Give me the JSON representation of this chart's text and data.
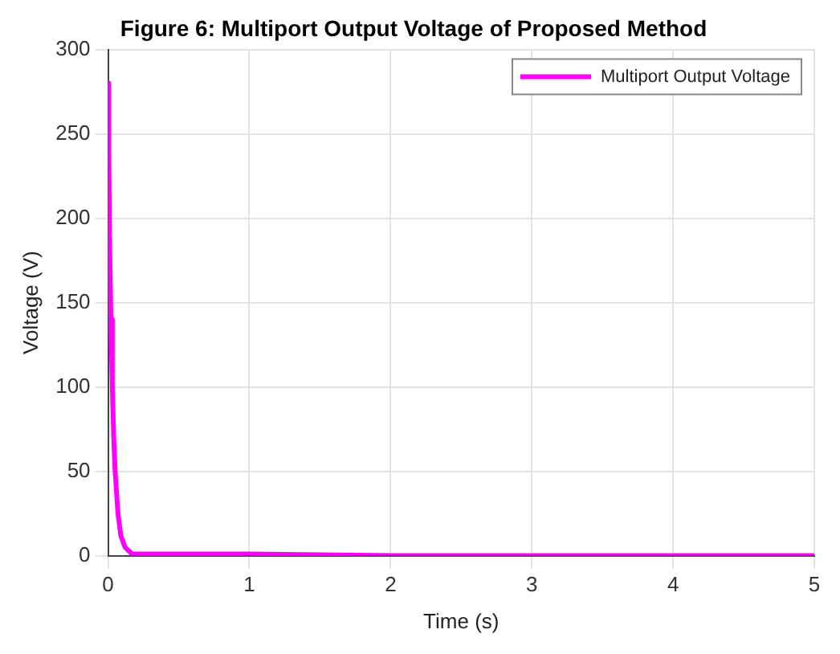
{
  "chart_data": {
    "type": "line",
    "title": "Figure 6: Multiport Output Voltage of Proposed Method",
    "xlabel": "Time (s)",
    "ylabel": "Voltage (V)",
    "series": [
      {
        "name": "Multiport Output Voltage",
        "color": "#ff00ff",
        "x": [
          0,
          0.005,
          0.01,
          0.02,
          0.03,
          0.04,
          0.05,
          0.07,
          0.09,
          0.12,
          0.17,
          0.3,
          1,
          2,
          3,
          4,
          5
        ],
        "values": [
          280,
          240,
          190,
          140,
          100,
          70,
          50,
          25,
          12,
          5,
          1,
          1,
          1,
          0,
          0,
          0,
          0
        ]
      }
    ],
    "xlim": [
      0,
      5
    ],
    "xticks": [
      0,
      1,
      2,
      3,
      4,
      5
    ],
    "ylim": [
      0,
      300
    ],
    "yticks": [
      0,
      50,
      100,
      150,
      200,
      250,
      300
    ],
    "grid": true,
    "legend": "top right",
    "marker": "none",
    "line_style": "solid"
  }
}
